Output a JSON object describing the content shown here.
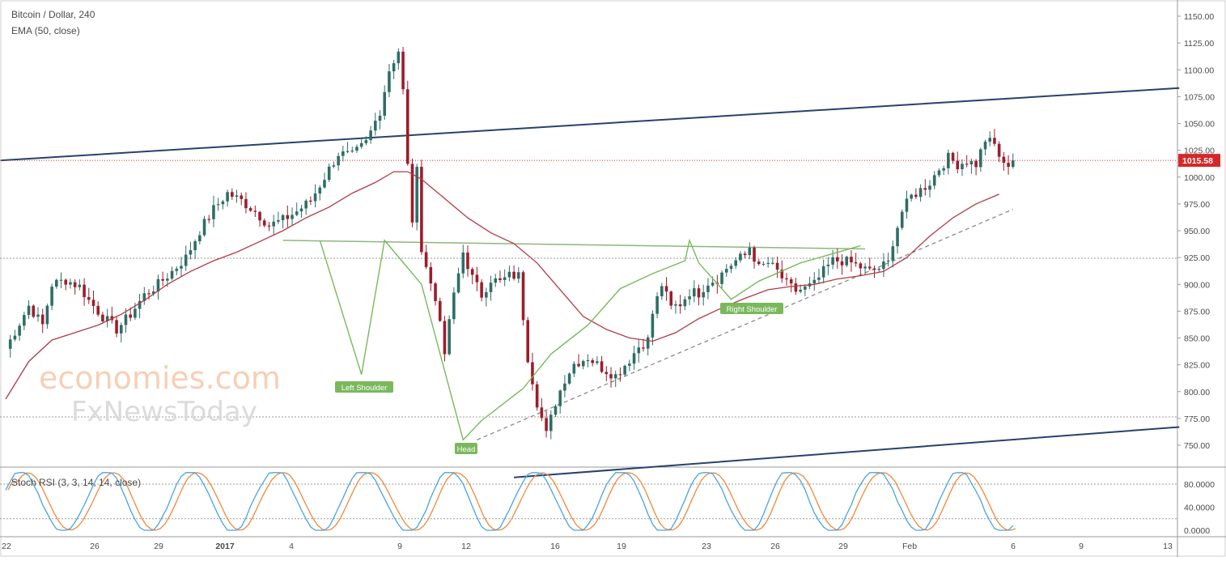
{
  "chart_data": [
    {
      "type": "candlestick",
      "title": "Bitcoin / Dollar, 240",
      "indicator": "EMA (50, close)",
      "ylim": [
        720,
        1160
      ],
      "y_ticks": [
        "1150.00",
        "1125.00",
        "1100.00",
        "1075.00",
        "1050.00",
        "1025.00",
        "1000.00",
        "975.00",
        "950.00",
        "925.00",
        "900.00",
        "875.00",
        "850.00",
        "825.00",
        "800.00",
        "775.00",
        "750.00"
      ],
      "x_ticks": [
        "22",
        "26",
        "29",
        "2017",
        "4",
        "9",
        "12",
        "16",
        "19",
        "23",
        "26",
        "29",
        "Feb",
        "6",
        "9",
        "13"
      ],
      "last_price": "1015.58",
      "price_path": [
        [
          0,
          840
        ],
        [
          5,
          880
        ],
        [
          8,
          862
        ],
        [
          10,
          900
        ],
        [
          13,
          904
        ],
        [
          16,
          898
        ],
        [
          18,
          885
        ],
        [
          21,
          870
        ],
        [
          24,
          858
        ],
        [
          27,
          872
        ],
        [
          30,
          890
        ],
        [
          33,
          900
        ],
        [
          36,
          912
        ],
        [
          39,
          925
        ],
        [
          42,
          950
        ],
        [
          45,
          970
        ],
        [
          48,
          985
        ],
        [
          51,
          978
        ],
        [
          54,
          968
        ],
        [
          57,
          955
        ],
        [
          60,
          960
        ],
        [
          63,
          968
        ],
        [
          66,
          978
        ],
        [
          69,
          1000
        ],
        [
          72,
          1022
        ],
        [
          75,
          1020
        ],
        [
          78,
          1032
        ],
        [
          81,
          1062
        ],
        [
          83,
          1100
        ],
        [
          85,
          1118
        ],
        [
          86,
          1080
        ],
        [
          87,
          1010
        ],
        [
          88,
          960
        ],
        [
          89,
          1005
        ],
        [
          90,
          935
        ],
        [
          92,
          900
        ],
        [
          94,
          870
        ],
        [
          95,
          830
        ],
        [
          96,
          868
        ],
        [
          99,
          930
        ],
        [
          101,
          906
        ],
        [
          103,
          890
        ],
        [
          105,
          905
        ],
        [
          107,
          902
        ],
        [
          109,
          908
        ],
        [
          111,
          908
        ],
        [
          113,
          832
        ],
        [
          115,
          790
        ],
        [
          117,
          760
        ],
        [
          119,
          790
        ],
        [
          121,
          812
        ],
        [
          123,
          826
        ],
        [
          126,
          832
        ],
        [
          129,
          822
        ],
        [
          132,
          815
        ],
        [
          135,
          830
        ],
        [
          137,
          842
        ],
        [
          139,
          848
        ],
        [
          140,
          873
        ],
        [
          142,
          900
        ],
        [
          144,
          878
        ],
        [
          146,
          882
        ],
        [
          148,
          893
        ],
        [
          150,
          892
        ],
        [
          152,
          902
        ],
        [
          154,
          905
        ],
        [
          156,
          915
        ],
        [
          158,
          922
        ],
        [
          160,
          927
        ],
        [
          161,
          935
        ],
        [
          162,
          925
        ],
        [
          163,
          915
        ],
        [
          165,
          920
        ],
        [
          167,
          912
        ],
        [
          169,
          900
        ],
        [
          171,
          894
        ],
        [
          173,
          896
        ],
        [
          175,
          900
        ],
        [
          177,
          912
        ],
        [
          179,
          922
        ],
        [
          181,
          922
        ],
        [
          183,
          920
        ],
        [
          185,
          916
        ],
        [
          187,
          912
        ],
        [
          189,
          915
        ],
        [
          191,
          920
        ],
        [
          192,
          940
        ],
        [
          194,
          968
        ],
        [
          196,
          982
        ],
        [
          198,
          988
        ],
        [
          200,
          995
        ],
        [
          202,
          1008
        ],
        [
          204,
          1018
        ],
        [
          206,
          1012
        ],
        [
          208,
          1015
        ],
        [
          210,
          1012
        ],
        [
          212,
          1035
        ],
        [
          214,
          1030
        ],
        [
          216,
          1010
        ],
        [
          218,
          1015.58
        ]
      ],
      "ema_path": [
        [
          0,
          793
        ],
        [
          5,
          828
        ],
        [
          10,
          848
        ],
        [
          15,
          855
        ],
        [
          20,
          862
        ],
        [
          25,
          872
        ],
        [
          30,
          885
        ],
        [
          35,
          900
        ],
        [
          40,
          912
        ],
        [
          45,
          922
        ],
        [
          50,
          930
        ],
        [
          55,
          940
        ],
        [
          60,
          950
        ],
        [
          65,
          962
        ],
        [
          70,
          972
        ],
        [
          75,
          985
        ],
        [
          80,
          995
        ],
        [
          84,
          1005
        ],
        [
          87,
          1005
        ],
        [
          90,
          998
        ],
        [
          95,
          980
        ],
        [
          100,
          962
        ],
        [
          105,
          948
        ],
        [
          110,
          938
        ],
        [
          115,
          920
        ],
        [
          120,
          895
        ],
        [
          125,
          870
        ],
        [
          130,
          858
        ],
        [
          135,
          850
        ],
        [
          140,
          847
        ],
        [
          145,
          855
        ],
        [
          150,
          868
        ],
        [
          155,
          878
        ],
        [
          160,
          887
        ],
        [
          165,
          895
        ],
        [
          170,
          898
        ],
        [
          175,
          900
        ],
        [
          180,
          905
        ],
        [
          185,
          908
        ],
        [
          190,
          912
        ],
        [
          195,
          925
        ],
        [
          200,
          945
        ],
        [
          205,
          962
        ],
        [
          210,
          975
        ],
        [
          215,
          984
        ]
      ],
      "trendlines": [
        {
          "name": "upper-channel",
          "points": [
            [
              -1,
              1015.58
            ],
            [
              254,
              1083
            ]
          ]
        },
        {
          "name": "lower-channel",
          "points": [
            [
              110,
              720
            ],
            [
              254,
              767
            ]
          ]
        },
        {
          "name": "neckline",
          "points": [
            [
              60,
              941
            ],
            [
              186,
              933
            ]
          ]
        }
      ],
      "pattern_labels": [
        "Left Shoulder",
        "Head",
        "Right Shoulder"
      ],
      "source": {
        "watermark_top": "economies.com",
        "watermark_bottom": "FxNewsToday"
      }
    },
    {
      "type": "line",
      "title": "Stoch RSI (3, 3, 14, 14, close)",
      "ylim": [
        0,
        100
      ],
      "y_ticks": [
        "80.0000",
        "40.0000",
        "0.0000"
      ],
      "series_colors": [
        "#4aa3df",
        "#f0883a"
      ]
    }
  ],
  "colors": {
    "up": "#2e6e66",
    "down": "#9c1d2b",
    "ema": "#b23a45",
    "channel": "#27426b",
    "neckline": "#8cb87a",
    "pattern": "#7ab85c",
    "last_price": "#d62828",
    "stoch_k": "#4aa3df",
    "stoch_d": "#f0883a"
  }
}
